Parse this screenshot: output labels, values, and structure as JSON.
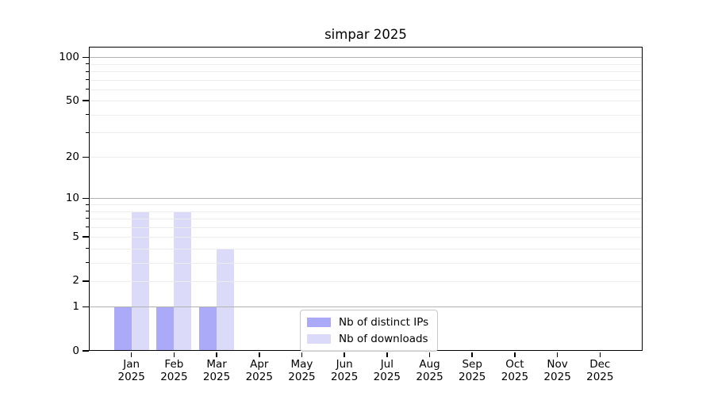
{
  "title": "simpar 2025",
  "colors": {
    "distinct_ips_bar": "#abaaf8",
    "downloads_bar": "#dbdaf8",
    "axis": "#000000",
    "grid_major": "#b2b2b2",
    "grid_minor": "#ececec",
    "legend_border": "#c9c9c9",
    "background": "#ffffff"
  },
  "legend": {
    "position": "lower center"
  },
  "chart_data": {
    "type": "bar",
    "title": "simpar 2025",
    "categories": [
      "Jan 2025",
      "Feb 2025",
      "Mar 2025",
      "Apr 2025",
      "May 2025",
      "Jun 2025",
      "Jul 2025",
      "Aug 2025",
      "Sep 2025",
      "Oct 2025",
      "Nov 2025",
      "Dec 2025"
    ],
    "series": [
      {
        "name": "Nb of distinct IPs",
        "color": "#abaaf8",
        "values": [
          1,
          1,
          1,
          0,
          0,
          0,
          0,
          0,
          0,
          0,
          0,
          0
        ]
      },
      {
        "name": "Nb of downloads",
        "color": "#dbdaf8",
        "values": [
          8,
          8,
          4,
          0,
          0,
          0,
          0,
          0,
          0,
          0,
          0,
          0
        ]
      }
    ],
    "xlabel": "",
    "ylabel": "",
    "yscale": "log1p",
    "ylim": [
      0,
      118
    ],
    "y_tick_labels": [
      0,
      1,
      2,
      5,
      10,
      20,
      50,
      100
    ],
    "y_major_gridlines": [
      1,
      10,
      100
    ],
    "y_minor_gridlines": [
      2,
      3,
      4,
      5,
      6,
      7,
      8,
      9,
      20,
      30,
      40,
      50,
      60,
      70,
      80,
      90
    ],
    "grid": true,
    "legend_position": "lower center"
  }
}
